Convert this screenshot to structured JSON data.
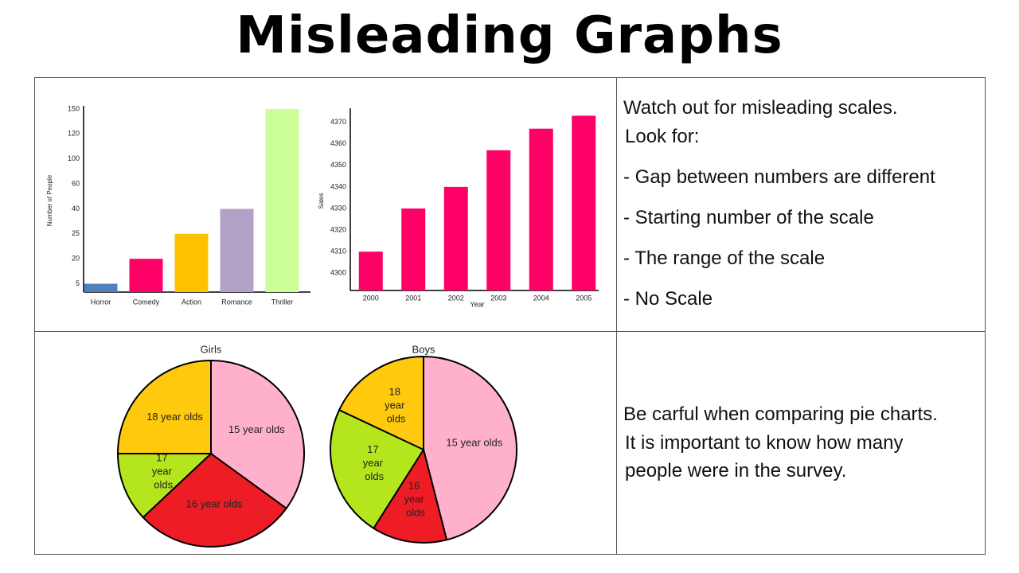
{
  "title": "Misleading Graphs",
  "notes": {
    "scales": {
      "intro": "Watch out for misleading scales.",
      "look_for": "Look for:",
      "items": [
        "- Gap between numbers are different",
        "- Starting number of the scale",
        "- The range of the scale",
        "- No Scale"
      ]
    },
    "pies": [
      "Be carful when comparing pie charts.",
      "It is important to know how many",
      "people were in the survey."
    ]
  },
  "chart_data": [
    {
      "type": "bar",
      "ylabel": "Number of People",
      "categories": [
        "Horror",
        "Comedy",
        "Action",
        "Romance",
        "Thriller"
      ],
      "values": [
        5,
        20,
        25,
        40,
        150
      ],
      "colors": [
        "#4f81bd",
        "#ff0066",
        "#ffc000",
        "#b3a2c7",
        "#ccff99"
      ],
      "ylim": [
        0,
        150
      ],
      "yticks": [
        5,
        20,
        25,
        40,
        60,
        100,
        120,
        150
      ]
    },
    {
      "type": "bar",
      "ylabel": "Sales",
      "xlabel": "Year",
      "categories": [
        "2000",
        "2001",
        "2002",
        "2003",
        "2004",
        "2005"
      ],
      "values": [
        4310,
        4330,
        4340,
        4357,
        4367,
        4373
      ],
      "colors": [
        "#ff0066",
        "#ff0066",
        "#ff0066",
        "#ff0066",
        "#ff0066",
        "#ff0066"
      ],
      "ylim": [
        4292,
        4375
      ],
      "yticks": [
        4300,
        4310,
        4320,
        4330,
        4340,
        4350,
        4360,
        4370
      ]
    },
    {
      "type": "pie",
      "title": "Girls",
      "categories": [
        "15 year olds",
        "16 year olds",
        "17 year olds",
        "18 year olds"
      ],
      "values": [
        35,
        28,
        12,
        25
      ],
      "colors": [
        "#ffb0cc",
        "#ee1c25",
        "#b5e61d",
        "#ffc90e"
      ]
    },
    {
      "type": "pie",
      "title": "Boys",
      "categories": [
        "15 year olds",
        "16 year olds",
        "17 year olds",
        "18 year olds"
      ],
      "values": [
        46,
        13,
        23,
        18
      ],
      "colors": [
        "#ffb0cc",
        "#ee1c25",
        "#b5e61d",
        "#ffc90e"
      ]
    }
  ]
}
